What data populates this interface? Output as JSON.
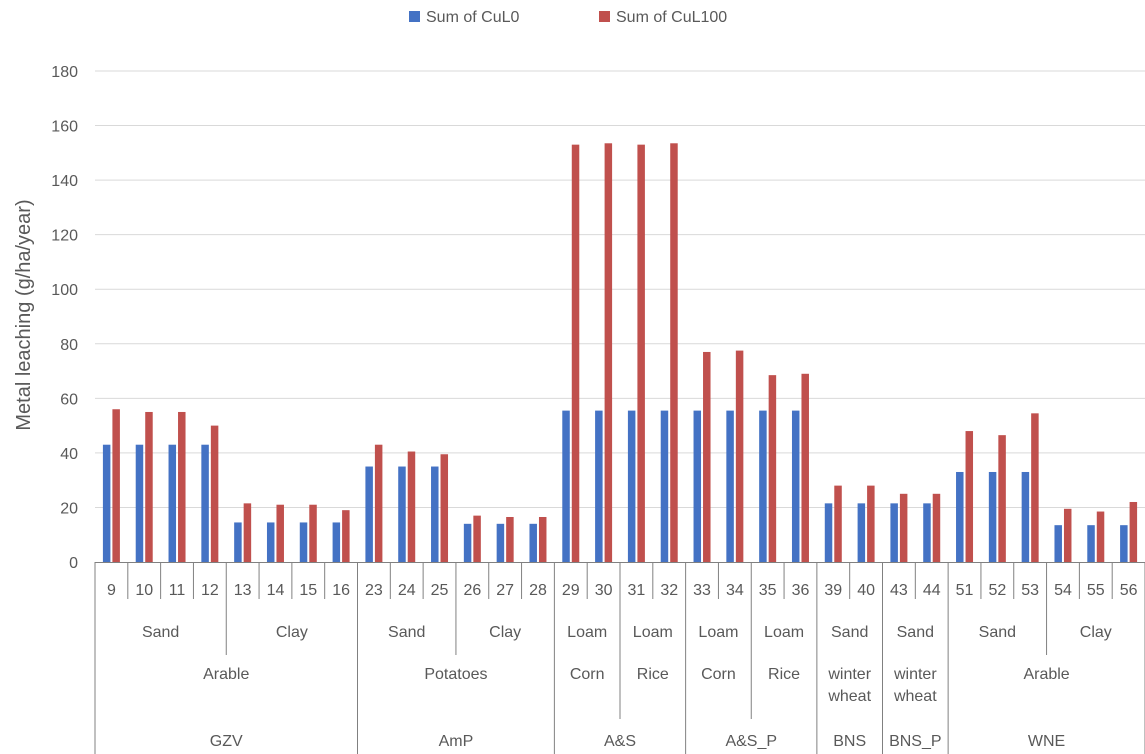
{
  "chart_data": {
    "type": "bar",
    "ylabel": "Metal leaching (g/ha/year)",
    "ylim": [
      0,
      180
    ],
    "yticks": [
      0,
      20,
      40,
      60,
      80,
      100,
      120,
      140,
      160,
      180
    ],
    "grid": true,
    "legend_position": "top",
    "categories": [
      "9",
      "10",
      "11",
      "12",
      "13",
      "14",
      "15",
      "16",
      "23",
      "24",
      "25",
      "26",
      "27",
      "28",
      "29",
      "30",
      "31",
      "32",
      "33",
      "34",
      "35",
      "36",
      "39",
      "40",
      "43",
      "44",
      "51",
      "52",
      "53",
      "54",
      "55",
      "56"
    ],
    "series": [
      {
        "name": "Sum of CuL0",
        "color": "#4472c4",
        "values": [
          43,
          43,
          43,
          43,
          14.5,
          14.5,
          14.5,
          14.5,
          35,
          35,
          35,
          14,
          14,
          14,
          55.5,
          55.5,
          55.5,
          55.5,
          55.5,
          55.5,
          55.5,
          55.5,
          21.5,
          21.5,
          21.5,
          21.5,
          33,
          33,
          33,
          13.5,
          13.5,
          13.5
        ]
      },
      {
        "name": "Sum of CuL100",
        "color": "#c0504d",
        "values": [
          56,
          55,
          55,
          50,
          21.5,
          21,
          21,
          19,
          43,
          40.5,
          39.5,
          17,
          16.5,
          16.5,
          153,
          153.5,
          153,
          153.5,
          77,
          77.5,
          68.5,
          69,
          28,
          28,
          25,
          25,
          48,
          46.5,
          54.5,
          19.5,
          18.5,
          22
        ]
      }
    ],
    "level1": [
      {
        "label": "Sand",
        "span": 4
      },
      {
        "label": "Clay",
        "span": 4
      },
      {
        "label": "Sand",
        "span": 3
      },
      {
        "label": "Clay",
        "span": 3
      },
      {
        "label": "Loam",
        "span": 2
      },
      {
        "label": "Loam",
        "span": 2
      },
      {
        "label": "Loam",
        "span": 2
      },
      {
        "label": "Loam",
        "span": 2
      },
      {
        "label": "Sand",
        "span": 2
      },
      {
        "label": "Sand",
        "span": 2
      },
      {
        "label": "Sand",
        "span": 3
      },
      {
        "label": "Clay",
        "span": 3
      }
    ],
    "level2": [
      {
        "label": "Arable",
        "span": 8
      },
      {
        "label": "Potatoes",
        "span": 6
      },
      {
        "label": "Corn",
        "span": 2
      },
      {
        "label": "Rice",
        "span": 2
      },
      {
        "label": "Corn",
        "span": 2
      },
      {
        "label": "Rice",
        "span": 2
      },
      {
        "label": "winter wheat",
        "span": 2
      },
      {
        "label": "winter wheat",
        "span": 2
      },
      {
        "label": "Arable",
        "span": 6
      }
    ],
    "level3": [
      {
        "label": "GZV",
        "span": 8
      },
      {
        "label": "AmP",
        "span": 6
      },
      {
        "label": "A&S",
        "span": 4
      },
      {
        "label": "A&S_P",
        "span": 4
      },
      {
        "label": "BNS",
        "span": 2
      },
      {
        "label": "BNS_P",
        "span": 2
      },
      {
        "label": "WNE",
        "span": 6
      }
    ]
  }
}
